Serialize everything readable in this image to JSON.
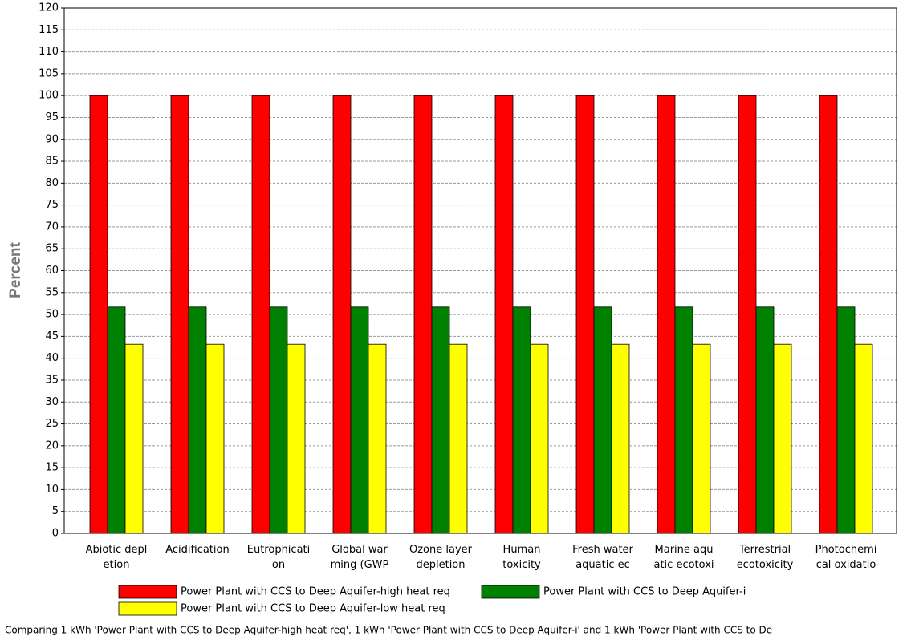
{
  "chart_data": {
    "type": "bar",
    "y_label": "Percent",
    "categories": [
      "Abiotic depl\netion",
      "Acidification",
      "Eutrophicati\non",
      "Global war\nming (GWP",
      "Ozone layer\ndepletion",
      "Human\ntoxicity",
      "Fresh water\naquatic ec",
      "Marine aqu\natic ecotoxi",
      "Terrestrial\necotoxicity",
      "Photochemi\ncal oxidatio"
    ],
    "series": [
      {
        "name": "Power Plant with CCS to Deep Aquifer-high heat req",
        "color": "#ff0000",
        "values": [
          100,
          100,
          100,
          100,
          100,
          100,
          100,
          100,
          100,
          100
        ]
      },
      {
        "name": "Power Plant with CCS to Deep Aquifer-i",
        "color": "#008000",
        "values": [
          51.7,
          51.7,
          51.7,
          51.7,
          51.7,
          51.7,
          51.7,
          51.7,
          51.7,
          51.7
        ]
      },
      {
        "name": "Power Plant with CCS to Deep Aquifer-low heat req",
        "color": "#ffff00",
        "values": [
          43.2,
          43.2,
          43.2,
          43.2,
          43.2,
          43.2,
          43.2,
          43.2,
          43.2,
          43.2
        ]
      }
    ],
    "ylim": [
      0,
      120
    ],
    "yticks": [
      0,
      5,
      10,
      15,
      20,
      25,
      30,
      35,
      40,
      45,
      50,
      55,
      60,
      65,
      70,
      75,
      80,
      85,
      90,
      95,
      100,
      105,
      110,
      115,
      120
    ],
    "grid": true,
    "caption": "Comparing 1 kWh 'Power Plant with CCS to Deep Aquifer-high heat req', 1 kWh 'Power Plant with CCS to Deep Aquifer-i' and 1 kWh 'Power Plant with CCS to De"
  }
}
